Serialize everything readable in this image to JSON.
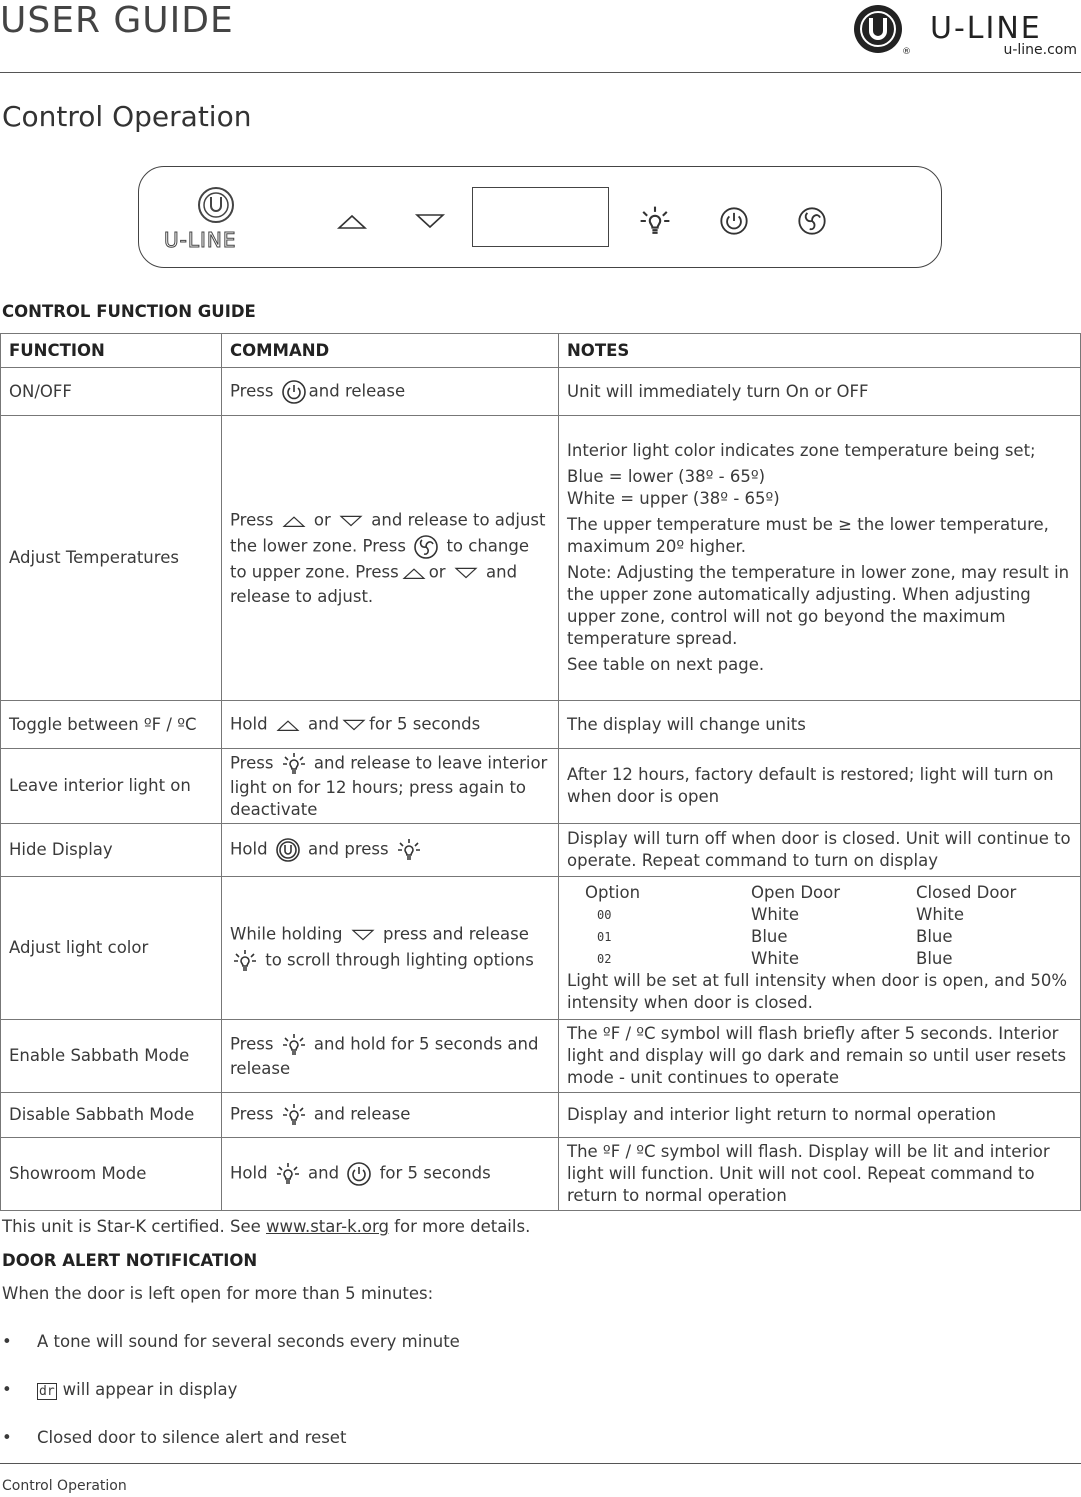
{
  "header": {
    "title": "USER GUIDE",
    "brand": "U-LINE",
    "site": "u-line.com"
  },
  "section_title": "Control Operation",
  "panel": {
    "brand": "U-LINE",
    "buttons": [
      "up",
      "down",
      "light",
      "power",
      "fan"
    ]
  },
  "guide_heading": "CONTROL FUNCTION GUIDE",
  "table": {
    "headers": [
      "FUNCTION",
      "COMMAND",
      "NOTES"
    ],
    "rows": [
      {
        "function": "ON/OFF",
        "command": [
          {
            "t": "Press "
          },
          {
            "i": "power"
          },
          {
            "t": "and release"
          }
        ],
        "notes": [
          {
            "t": "Unit will immediately turn On or OFF"
          }
        ]
      },
      {
        "function": "Adjust Temperatures",
        "command": [
          {
            "t": "Press "
          },
          {
            "i": "up"
          },
          {
            "t": " or "
          },
          {
            "i": "down"
          },
          {
            "t": " and release to adjust the lower zone. Press "
          },
          {
            "i": "fan"
          },
          {
            "t": " to change to upper zone. Press"
          },
          {
            "i": "up"
          },
          {
            "t": "or "
          },
          {
            "i": "down"
          },
          {
            "t": " and release to adjust."
          }
        ],
        "notes": [
          {
            "p": "Interior light color indicates zone temperature being set;"
          },
          {
            "p": "Blue = lower (38º - 65º)\nWhite = upper (38º - 65º)"
          },
          {
            "p": "The upper temperature must be ≥ the lower temperature, maximum 20º higher."
          },
          {
            "p": "Note: Adjusting the temperature in lower zone, may result in the upper zone automatically adjusting. When adjusting upper zone, control will not go beyond the maximum temperature spread."
          },
          {
            "p": "See table on next page."
          }
        ]
      },
      {
        "function": "Toggle between ºF / ºC",
        "command": [
          {
            "t": "Hold "
          },
          {
            "i": "up"
          },
          {
            "t": " and"
          },
          {
            "i": "down"
          },
          {
            "t": "for 5 seconds"
          }
        ],
        "notes": [
          {
            "t": "The display will change units"
          }
        ]
      },
      {
        "function": "Leave interior light on",
        "command": [
          {
            "t": "Press "
          },
          {
            "i": "light"
          },
          {
            "t": " and release to leave interior light on for 12 hours; press again to deactivate"
          }
        ],
        "notes": [
          {
            "t": "After 12 hours, factory default is restored; light will turn on when door is open"
          }
        ]
      },
      {
        "function": "Hide Display",
        "command": [
          {
            "t": "Hold "
          },
          {
            "i": "logo"
          },
          {
            "t": " and press "
          },
          {
            "i": "light"
          }
        ],
        "notes": [
          {
            "t": "Display will turn off when door is closed. Unit will continue to operate. Repeat command to turn on display"
          }
        ]
      },
      {
        "function": "Adjust light color",
        "command": [
          {
            "t": "While holding "
          },
          {
            "i": "down"
          },
          {
            "t": " press and release"
          },
          {
            "i": "light"
          },
          {
            "t": " to scroll through lighting options"
          }
        ],
        "light_options": {
          "headers": [
            "Option",
            "Open Door",
            "Closed Door"
          ],
          "rows": [
            [
              "00",
              "White",
              "White"
            ],
            [
              "01",
              "Blue",
              "Blue"
            ],
            [
              "02",
              "White",
              "Blue"
            ]
          ],
          "note": "Light will be set at full intensity when door is open, and 50% intensity when door is closed."
        }
      },
      {
        "function": "Enable Sabbath Mode",
        "command": [
          {
            "t": "Press "
          },
          {
            "i": "light"
          },
          {
            "t": " and hold for 5 seconds and release"
          }
        ],
        "notes": [
          {
            "t": "The ºF / ºC symbol will flash briefly after 5 seconds. Interior light and display will go dark and remain so until user resets mode - unit continues to operate"
          }
        ]
      },
      {
        "function": "Disable Sabbath Mode",
        "command": [
          {
            "t": "Press "
          },
          {
            "i": "light"
          },
          {
            "t": " and release"
          }
        ],
        "notes": [
          {
            "t": "Display and interior light return to normal operation"
          }
        ]
      },
      {
        "function": "Showroom Mode",
        "command": [
          {
            "t": "Hold "
          },
          {
            "i": "light"
          },
          {
            "t": " and "
          },
          {
            "i": "power"
          },
          {
            "t": " for 5 seconds"
          }
        ],
        "notes": [
          {
            "t": "The ºF / ºC symbol will flash. Display will be lit and interior light will function. Unit will not cool. Repeat command to return to normal operation"
          }
        ]
      }
    ]
  },
  "star_k": {
    "before": "This unit is Star-K certified. See ",
    "link": "www.star-k.org",
    "after": " for more details."
  },
  "door_alert": {
    "heading": "DOOR ALERT NOTIFICATION",
    "intro": "When the door is left open for more than 5 minutes:",
    "bullets": [
      "A tone will sound for several seconds every minute",
      "will appear in display",
      "Closed door to silence alert and reset"
    ],
    "display_code": "dr"
  },
  "footer": "Control Operation"
}
